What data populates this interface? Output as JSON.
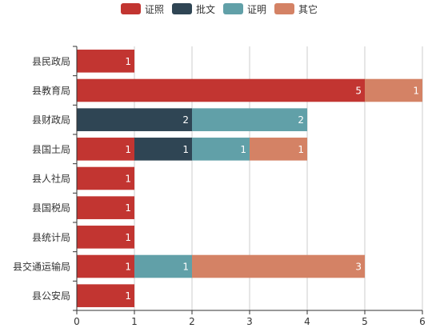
{
  "chart_data": {
    "type": "bar",
    "orientation": "horizontal",
    "stacked": true,
    "categories": [
      "县民政局",
      "县教育局",
      "县财政局",
      "县国土局",
      "县人社局",
      "县国税局",
      "县统计局",
      "县交通运输局",
      "县公安局"
    ],
    "series": [
      {
        "name": "证照",
        "color": "#c23531",
        "values": [
          1,
          5,
          0,
          1,
          1,
          1,
          1,
          1,
          1
        ]
      },
      {
        "name": "批文",
        "color": "#2f4554",
        "values": [
          0,
          0,
          2,
          1,
          0,
          0,
          0,
          0,
          0
        ]
      },
      {
        "name": "证明",
        "color": "#61a0a8",
        "values": [
          0,
          0,
          2,
          1,
          0,
          0,
          0,
          1,
          0
        ]
      },
      {
        "name": "其它",
        "color": "#d48265",
        "values": [
          0,
          1,
          0,
          1,
          0,
          0,
          0,
          3,
          0
        ]
      }
    ],
    "xlim": [
      0,
      6
    ],
    "x_ticks": [
      "0",
      "1",
      "2",
      "3",
      "4",
      "5",
      "6"
    ],
    "grid": "vertical",
    "legend_position": "top-center",
    "title": "",
    "xlabel": "",
    "ylabel": ""
  }
}
